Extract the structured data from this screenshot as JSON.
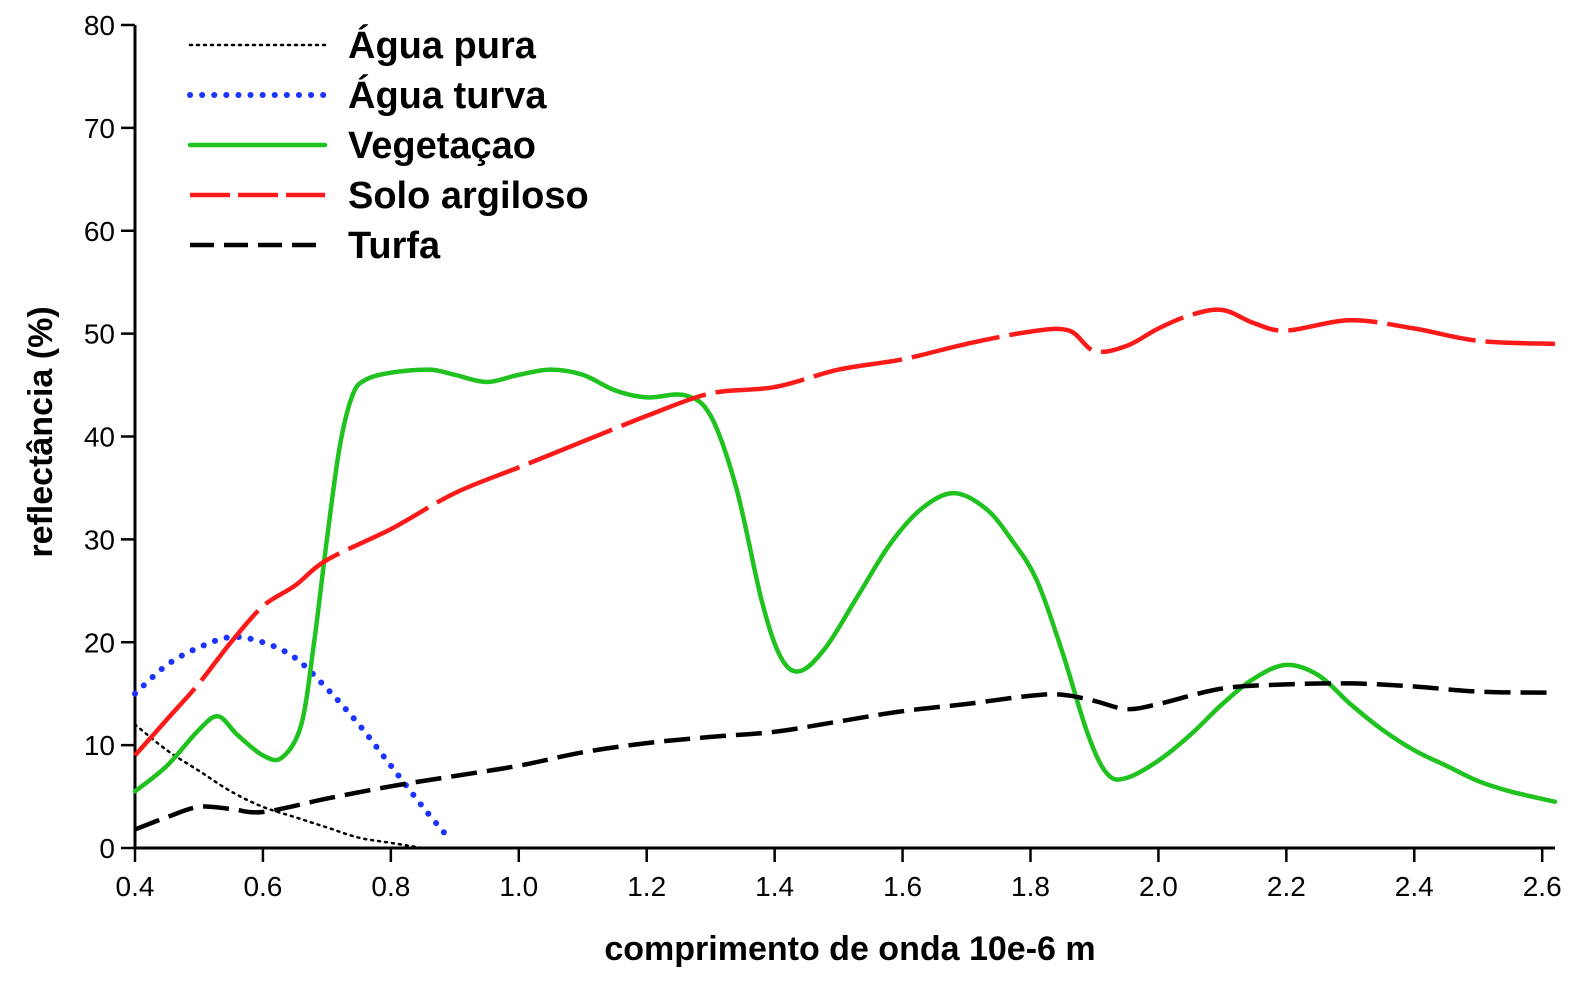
{
  "chart_data": {
    "type": "line",
    "title": "",
    "xlabel": "comprimento de onda 10e-6 m",
    "ylabel": "reflectância (%)",
    "xlim": [
      0.4,
      2.62
    ],
    "ylim": [
      0,
      80
    ],
    "x_ticks": [
      "0.4",
      "0.6",
      "0.8",
      "1.0",
      "1.2",
      "1.4",
      "1.6",
      "1.8",
      "2.0",
      "2.2",
      "2.4",
      "2.6"
    ],
    "y_ticks": [
      "0",
      "10",
      "20",
      "30",
      "40",
      "50",
      "60",
      "70",
      "80"
    ],
    "grid": false,
    "legend_position": "top-left",
    "series": [
      {
        "name": "Água pura",
        "color": "#000000",
        "style": "dotted-thin",
        "points": [
          [
            0.4,
            12
          ],
          [
            0.45,
            9.5
          ],
          [
            0.5,
            7.5
          ],
          [
            0.55,
            5.5
          ],
          [
            0.6,
            4
          ],
          [
            0.65,
            3
          ],
          [
            0.7,
            2
          ],
          [
            0.75,
            1
          ],
          [
            0.8,
            0.5
          ],
          [
            0.85,
            0
          ]
        ]
      },
      {
        "name": "Água turva",
        "color": "#1a33ff",
        "style": "dotted-thick",
        "points": [
          [
            0.4,
            15
          ],
          [
            0.45,
            17.8
          ],
          [
            0.5,
            19.5
          ],
          [
            0.55,
            20.5
          ],
          [
            0.6,
            20
          ],
          [
            0.65,
            18.5
          ],
          [
            0.7,
            15.5
          ],
          [
            0.75,
            12
          ],
          [
            0.8,
            8
          ],
          [
            0.85,
            4
          ],
          [
            0.89,
            1
          ]
        ]
      },
      {
        "name": "Vegetaçao",
        "color": "#1fc21f",
        "style": "solid",
        "points": [
          [
            0.4,
            5.5
          ],
          [
            0.45,
            8
          ],
          [
            0.5,
            11.5
          ],
          [
            0.53,
            12.8
          ],
          [
            0.56,
            11
          ],
          [
            0.6,
            9
          ],
          [
            0.63,
            8.8
          ],
          [
            0.66,
            12
          ],
          [
            0.68,
            20
          ],
          [
            0.7,
            30
          ],
          [
            0.72,
            39
          ],
          [
            0.74,
            44
          ],
          [
            0.76,
            45.5
          ],
          [
            0.8,
            46.2
          ],
          [
            0.86,
            46.5
          ],
          [
            0.9,
            46
          ],
          [
            0.95,
            45.3
          ],
          [
            1.0,
            46
          ],
          [
            1.05,
            46.5
          ],
          [
            1.1,
            46
          ],
          [
            1.15,
            44.5
          ],
          [
            1.2,
            43.8
          ],
          [
            1.26,
            44
          ],
          [
            1.3,
            42
          ],
          [
            1.34,
            35
          ],
          [
            1.38,
            24
          ],
          [
            1.41,
            18.5
          ],
          [
            1.44,
            17.2
          ],
          [
            1.48,
            19.5
          ],
          [
            1.53,
            24.5
          ],
          [
            1.58,
            29.5
          ],
          [
            1.63,
            33
          ],
          [
            1.68,
            34.5
          ],
          [
            1.73,
            33
          ],
          [
            1.77,
            30
          ],
          [
            1.81,
            26
          ],
          [
            1.85,
            19
          ],
          [
            1.89,
            11
          ],
          [
            1.92,
            7.2
          ],
          [
            1.95,
            6.8
          ],
          [
            2.0,
            8.5
          ],
          [
            2.05,
            11
          ],
          [
            2.1,
            14
          ],
          [
            2.15,
            16.5
          ],
          [
            2.2,
            17.8
          ],
          [
            2.25,
            16.8
          ],
          [
            2.3,
            14
          ],
          [
            2.35,
            11.5
          ],
          [
            2.4,
            9.5
          ],
          [
            2.45,
            8
          ],
          [
            2.5,
            6.5
          ],
          [
            2.55,
            5.5
          ],
          [
            2.62,
            4.5
          ]
        ]
      },
      {
        "name": "Solo argiloso",
        "color": "#ff1a1a",
        "style": "long-dash",
        "points": [
          [
            0.4,
            9
          ],
          [
            0.45,
            12.5
          ],
          [
            0.5,
            16
          ],
          [
            0.55,
            20
          ],
          [
            0.6,
            23.5
          ],
          [
            0.65,
            25.5
          ],
          [
            0.7,
            28
          ],
          [
            0.8,
            31
          ],
          [
            0.9,
            34.5
          ],
          [
            1.0,
            37
          ],
          [
            1.1,
            39.5
          ],
          [
            1.2,
            42
          ],
          [
            1.3,
            44.2
          ],
          [
            1.4,
            44.8
          ],
          [
            1.5,
            46.5
          ],
          [
            1.6,
            47.5
          ],
          [
            1.7,
            49
          ],
          [
            1.8,
            50.2
          ],
          [
            1.86,
            50.3
          ],
          [
            1.9,
            48.3
          ],
          [
            1.95,
            48.8
          ],
          [
            2.0,
            50.5
          ],
          [
            2.05,
            51.8
          ],
          [
            2.1,
            52.3
          ],
          [
            2.15,
            51
          ],
          [
            2.2,
            50.3
          ],
          [
            2.3,
            51.3
          ],
          [
            2.4,
            50.5
          ],
          [
            2.5,
            49.3
          ],
          [
            2.62,
            49
          ]
        ]
      },
      {
        "name": "Turfa",
        "color": "#000000",
        "style": "dash",
        "points": [
          [
            0.4,
            1.8
          ],
          [
            0.45,
            3
          ],
          [
            0.5,
            4
          ],
          [
            0.55,
            3.8
          ],
          [
            0.6,
            3.5
          ],
          [
            0.7,
            4.8
          ],
          [
            0.8,
            6
          ],
          [
            0.9,
            7
          ],
          [
            1.0,
            8
          ],
          [
            1.1,
            9.3
          ],
          [
            1.2,
            10.2
          ],
          [
            1.3,
            10.8
          ],
          [
            1.4,
            11.3
          ],
          [
            1.5,
            12.3
          ],
          [
            1.6,
            13.3
          ],
          [
            1.7,
            14
          ],
          [
            1.8,
            14.8
          ],
          [
            1.85,
            14.9
          ],
          [
            1.9,
            14.3
          ],
          [
            1.95,
            13.5
          ],
          [
            2.0,
            14
          ],
          [
            2.1,
            15.5
          ],
          [
            2.2,
            15.9
          ],
          [
            2.3,
            16
          ],
          [
            2.4,
            15.7
          ],
          [
            2.5,
            15.2
          ],
          [
            2.62,
            15.1
          ]
        ]
      }
    ]
  }
}
